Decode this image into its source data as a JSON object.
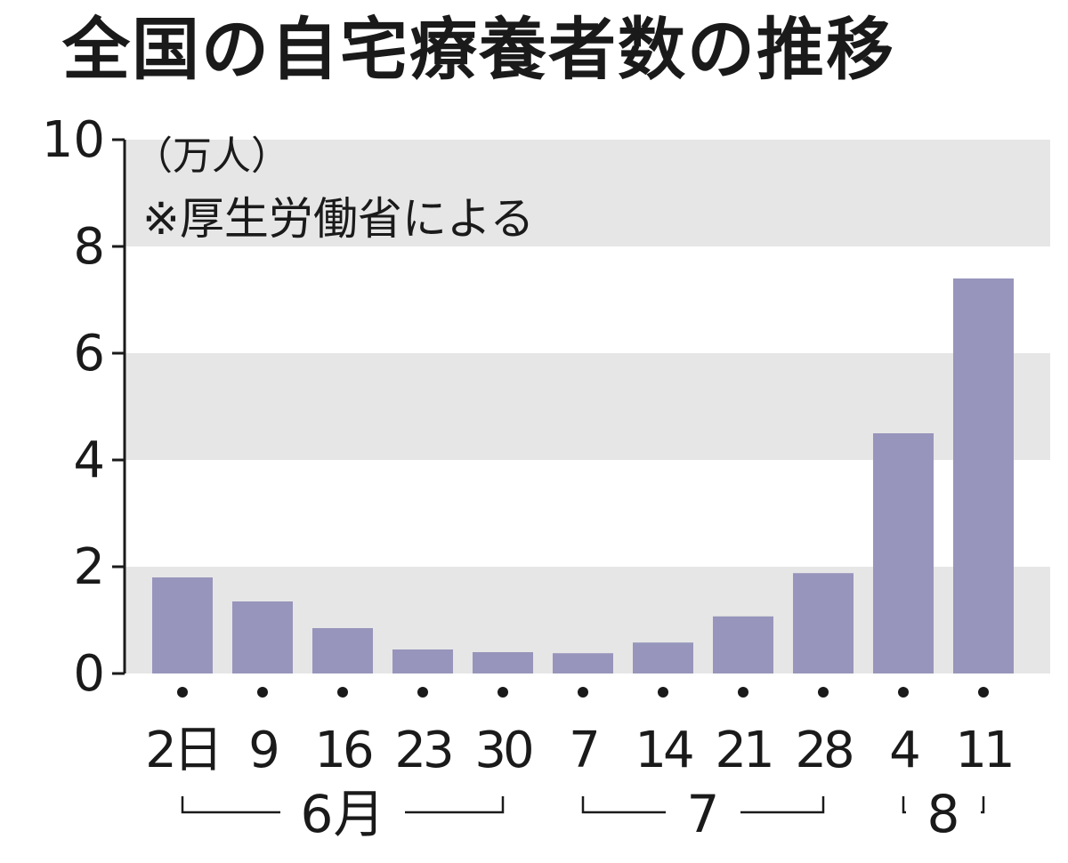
{
  "chart_data": {
    "type": "bar",
    "title": "全国の自宅療養者数の推移",
    "unit_label": "（万人）",
    "source_note": "※厚生労働省による",
    "ylim": [
      0,
      10
    ],
    "yticks": [
      "0",
      "2",
      "4",
      "6",
      "8",
      "10"
    ],
    "categories": [
      "2日",
      "9",
      "16",
      "23",
      "30",
      "7",
      "14",
      "21",
      "28",
      "4",
      "11"
    ],
    "values": [
      1.8,
      1.35,
      0.85,
      0.45,
      0.4,
      0.38,
      0.58,
      1.07,
      1.88,
      4.5,
      7.4
    ],
    "month_groups": [
      {
        "label": "6月",
        "start": 0,
        "end": 4
      },
      {
        "label": "7",
        "start": 5,
        "end": 8
      },
      {
        "label": "8",
        "start": 9,
        "end": 10
      }
    ],
    "bar_color": "#9795bb",
    "band_color": "#e6e6e6"
  }
}
